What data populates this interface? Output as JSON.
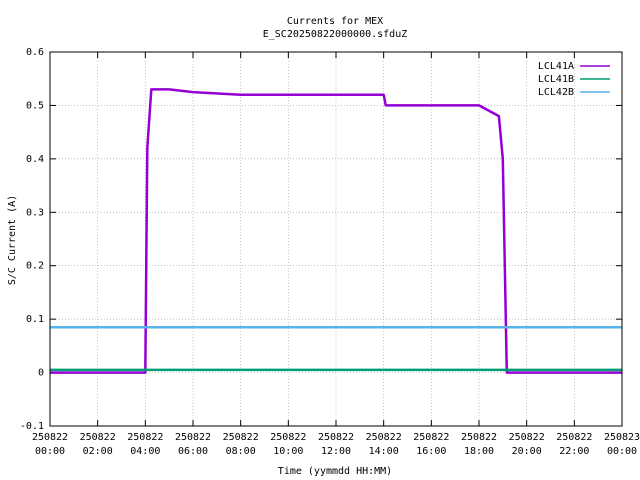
{
  "chart_data": {
    "type": "line",
    "title": "Currents for MEX",
    "subtitle": "E_SC20250822000000.sfduZ",
    "xlabel": "Time (yymmdd HH:MM)",
    "ylabel": "S/C Current (A)",
    "ylim": [
      -0.1,
      0.6
    ],
    "yticks": [
      "-0.1",
      "0",
      "0.1",
      "0.2",
      "0.3",
      "0.4",
      "0.5",
      "0.6"
    ],
    "xlim_hours": [
      0,
      24
    ],
    "xticks": [
      {
        "date": "250822",
        "time": "00:00"
      },
      {
        "date": "250822",
        "time": "02:00"
      },
      {
        "date": "250822",
        "time": "04:00"
      },
      {
        "date": "250822",
        "time": "06:00"
      },
      {
        "date": "250822",
        "time": "08:00"
      },
      {
        "date": "250822",
        "time": "10:00"
      },
      {
        "date": "250822",
        "time": "12:00"
      },
      {
        "date": "250822",
        "time": "14:00"
      },
      {
        "date": "250822",
        "time": "16:00"
      },
      {
        "date": "250822",
        "time": "18:00"
      },
      {
        "date": "250822",
        "time": "20:00"
      },
      {
        "date": "250822",
        "time": "22:00"
      },
      {
        "date": "250823",
        "time": "00:00"
      }
    ],
    "grid": true,
    "legend_position": "top-right",
    "series": [
      {
        "name": "LCL41A",
        "color": "#9400d3",
        "x": [
          "00:00",
          "04:00",
          "04:05",
          "04:15",
          "05:00",
          "06:00",
          "08:00",
          "10:00",
          "12:00",
          "14:00",
          "14:05",
          "16:00",
          "18:00",
          "18:50",
          "19:00",
          "19:10",
          "20:00",
          "22:00",
          "24:00"
        ],
        "y": [
          0.0,
          0.0,
          0.42,
          0.53,
          0.53,
          0.525,
          0.52,
          0.52,
          0.52,
          0.52,
          0.5,
          0.5,
          0.5,
          0.48,
          0.4,
          0.0,
          0.0,
          0.0,
          0.0
        ]
      },
      {
        "name": "LCL41B",
        "color": "#009e73",
        "x": [
          "00:00",
          "06:00",
          "12:00",
          "18:00",
          "24:00"
        ],
        "y": [
          0.005,
          0.005,
          0.005,
          0.005,
          0.005
        ]
      },
      {
        "name": "LCL42B",
        "color": "#56b4e9",
        "x": [
          "00:00",
          "06:00",
          "12:00",
          "18:00",
          "24:00"
        ],
        "y": [
          0.085,
          0.085,
          0.085,
          0.085,
          0.085
        ]
      }
    ]
  }
}
